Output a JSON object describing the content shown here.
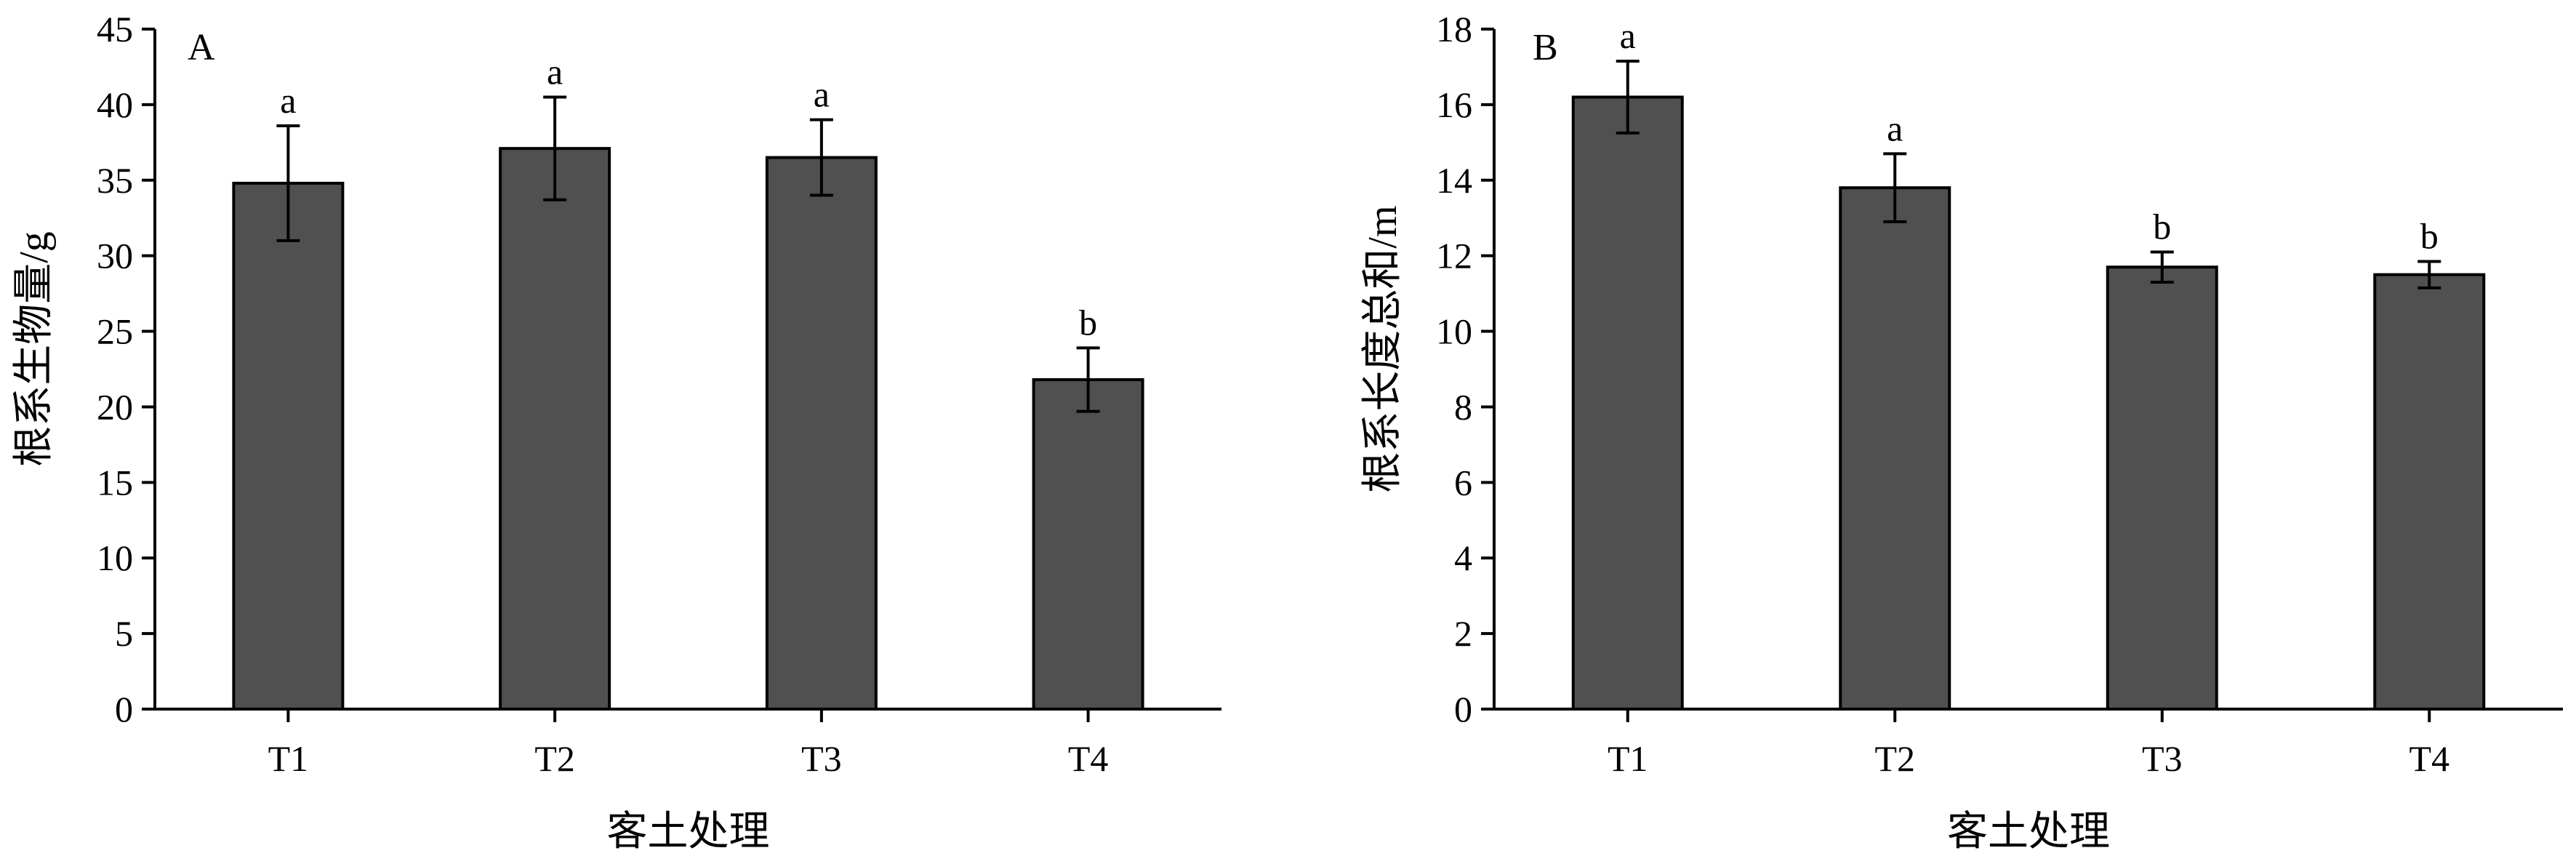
{
  "chart_data": [
    {
      "type": "bar",
      "panel_label": "A",
      "categories": [
        "T1",
        "T2",
        "T3",
        "T4"
      ],
      "values": [
        34.8,
        37.1,
        36.5,
        21.8
      ],
      "errors": [
        3.8,
        3.4,
        2.5,
        2.1
      ],
      "significance": [
        "a",
        "a",
        "a",
        "b"
      ],
      "xlabel": "客土处理",
      "ylabel": "根系生物量/g",
      "ylim": [
        0,
        45
      ],
      "yticks": [
        0,
        5,
        10,
        15,
        20,
        25,
        30,
        35,
        40,
        45
      ],
      "bar_color": "#505050",
      "grid": false
    },
    {
      "type": "bar",
      "panel_label": "B",
      "categories": [
        "T1",
        "T2",
        "T3",
        "T4"
      ],
      "values": [
        16.2,
        13.8,
        11.7,
        11.5
      ],
      "errors": [
        0.95,
        0.9,
        0.4,
        0.35
      ],
      "significance": [
        "a",
        "a",
        "b",
        "b"
      ],
      "xlabel": "客土处理",
      "ylabel": "根系长度总和/m",
      "ylim": [
        0,
        18
      ],
      "yticks": [
        0,
        2,
        4,
        6,
        8,
        10,
        12,
        14,
        16,
        18
      ],
      "bar_color": "#505050",
      "grid": false
    }
  ]
}
